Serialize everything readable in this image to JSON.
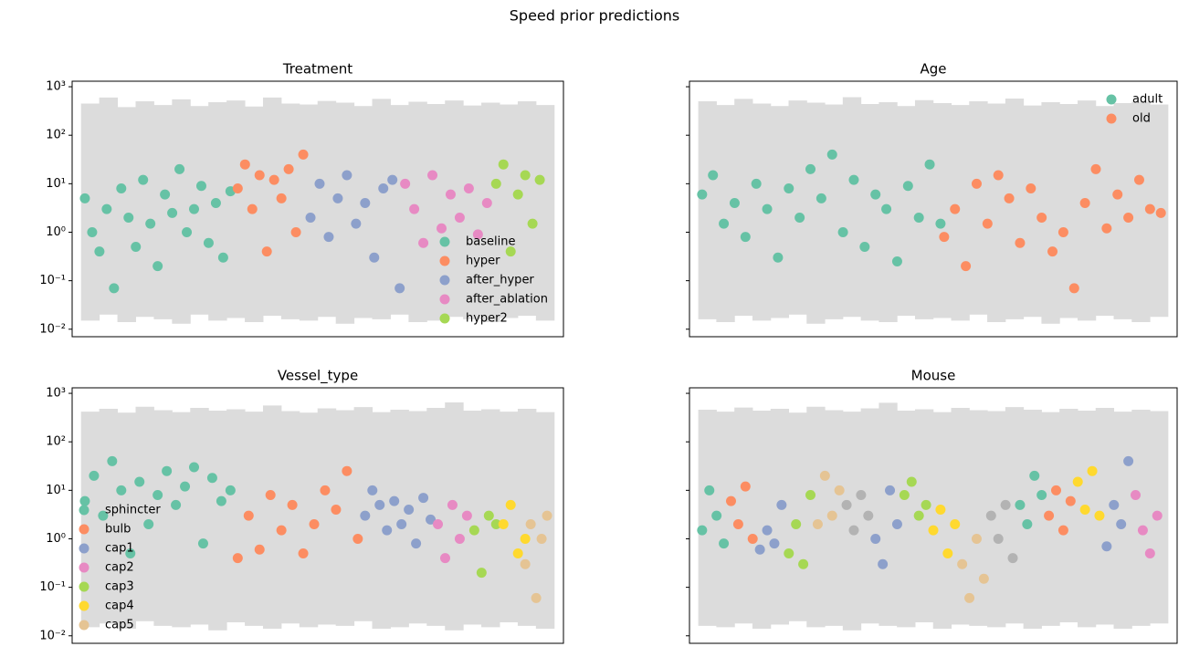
{
  "title": "Speed prior predictions",
  "chart_data": [
    {
      "type": "scatter",
      "title": "Treatment",
      "yscale": "log",
      "ylim": [
        0.007,
        1300
      ],
      "xlim": [
        -5,
        265
      ],
      "yticks": [
        {
          "value": 0.01,
          "label": "10⁻²"
        },
        {
          "value": 0.1,
          "label": "10⁻¹"
        },
        {
          "value": 1,
          "label": "10⁰"
        },
        {
          "value": 10,
          "label": "10¹"
        },
        {
          "value": 100,
          "label": "10²"
        },
        {
          "value": 1000,
          "label": "10³"
        }
      ],
      "show_ytick_labels": true,
      "legend": "lower right",
      "band": {
        "color": "#dcdcdc",
        "x": [
          0,
          10,
          20,
          30,
          40,
          50,
          60,
          70,
          80,
          90,
          100,
          110,
          120,
          130,
          140,
          150,
          160,
          170,
          180,
          190,
          200,
          210,
          220,
          230,
          240,
          250
        ],
        "lower": [
          0.015,
          0.02,
          0.014,
          0.018,
          0.016,
          0.013,
          0.02,
          0.015,
          0.017,
          0.014,
          0.019,
          0.016,
          0.015,
          0.018,
          0.013,
          0.017,
          0.016,
          0.02,
          0.014,
          0.015,
          0.018,
          0.016,
          0.014,
          0.017,
          0.019,
          0.015
        ],
        "upper": [
          450,
          600,
          380,
          500,
          420,
          550,
          400,
          480,
          520,
          390,
          600,
          450,
          430,
          510,
          470,
          400,
          560,
          420,
          490,
          440,
          520,
          410,
          470,
          430,
          500,
          420
        ]
      },
      "series": [
        {
          "name": "baseline",
          "color": "#66c2a5",
          "x": [
            2,
            6,
            10,
            14,
            18,
            22,
            26,
            30,
            34,
            38,
            42,
            46,
            50,
            54,
            58,
            62,
            66,
            70,
            74,
            78,
            82
          ],
          "values": [
            5,
            1,
            0.4,
            3,
            0.07,
            8,
            2,
            0.5,
            12,
            1.5,
            0.2,
            6,
            2.5,
            20,
            1,
            3,
            9,
            0.6,
            4,
            0.3,
            7
          ]
        },
        {
          "name": "hyper",
          "color": "#fc8d62",
          "x": [
            86,
            90,
            94,
            98,
            102,
            106,
            110,
            114,
            118,
            122
          ],
          "values": [
            8,
            25,
            3,
            15,
            0.4,
            12,
            5,
            20,
            1,
            40
          ]
        },
        {
          "name": "after_hyper",
          "color": "#8da0cb",
          "x": [
            126,
            131,
            136,
            141,
            146,
            151,
            156,
            161,
            166,
            171,
            175
          ],
          "values": [
            2,
            10,
            0.8,
            5,
            15,
            1.5,
            4,
            0.3,
            8,
            12,
            0.07
          ]
        },
        {
          "name": "after_ablation",
          "color": "#e78ac3",
          "x": [
            178,
            183,
            188,
            193,
            198,
            203,
            208,
            213,
            218,
            223
          ],
          "values": [
            10,
            3,
            0.6,
            15,
            1.2,
            6,
            2,
            8,
            0.9,
            4
          ]
        },
        {
          "name": "hyper2",
          "color": "#a6d854",
          "x": [
            228,
            232,
            236,
            240,
            244,
            248,
            252
          ],
          "values": [
            10,
            25,
            0.4,
            6,
            15,
            1.5,
            12
          ]
        }
      ]
    },
    {
      "type": "scatter",
      "title": "Age",
      "yscale": "log",
      "ylim": [
        0.007,
        1300
      ],
      "xlim": [
        -5,
        265
      ],
      "yticks": [
        0.01,
        0.1,
        1,
        10,
        100,
        1000
      ],
      "show_ytick_labels": false,
      "legend": "upper right",
      "band": {
        "color": "#dcdcdc",
        "x": [
          0,
          10,
          20,
          30,
          40,
          50,
          60,
          70,
          80,
          90,
          100,
          110,
          120,
          130,
          140,
          150,
          160,
          170,
          180,
          190,
          200,
          210,
          220,
          230,
          240,
          250
        ],
        "lower": [
          0.016,
          0.014,
          0.019,
          0.015,
          0.017,
          0.02,
          0.013,
          0.016,
          0.018,
          0.015,
          0.014,
          0.019,
          0.016,
          0.017,
          0.015,
          0.02,
          0.014,
          0.016,
          0.018,
          0.013,
          0.017,
          0.015,
          0.019,
          0.016,
          0.014,
          0.018
        ],
        "upper": [
          500,
          420,
          560,
          450,
          400,
          520,
          470,
          430,
          610,
          440,
          480,
          400,
          530,
          460,
          420,
          500,
          450,
          570,
          410,
          480,
          440,
          520,
          400,
          460,
          490,
          430
        ]
      },
      "series": [
        {
          "name": "adult",
          "color": "#66c2a5",
          "x": [
            2,
            8,
            14,
            20,
            26,
            32,
            38,
            44,
            50,
            56,
            62,
            68,
            74,
            80,
            86,
            92,
            98,
            104,
            110,
            116,
            122,
            128,
            134
          ],
          "values": [
            6,
            15,
            1.5,
            4,
            0.8,
            10,
            3,
            0.3,
            8,
            2,
            20,
            5,
            40,
            1,
            12,
            0.5,
            6,
            3,
            0.25,
            9,
            2,
            25,
            1.5
          ]
        },
        {
          "name": "old",
          "color": "#fc8d62",
          "x": [
            136,
            142,
            148,
            154,
            160,
            166,
            172,
            178,
            184,
            190,
            196,
            202,
            208,
            214,
            220,
            226,
            232,
            238,
            244,
            250,
            256
          ],
          "values": [
            0.8,
            3,
            0.2,
            10,
            1.5,
            15,
            5,
            0.6,
            8,
            2,
            0.4,
            1,
            0.07,
            4,
            20,
            1.2,
            6,
            2,
            12,
            3,
            2.5
          ]
        }
      ]
    },
    {
      "type": "scatter",
      "title": "Vessel_type",
      "yscale": "log",
      "ylim": [
        0.007,
        1300
      ],
      "xlim": [
        -5,
        265
      ],
      "yticks": [
        {
          "value": 0.01,
          "label": "10⁻²"
        },
        {
          "value": 0.1,
          "label": "10⁻¹"
        },
        {
          "value": 1,
          "label": "10⁰"
        },
        {
          "value": 10,
          "label": "10¹"
        },
        {
          "value": 100,
          "label": "10²"
        },
        {
          "value": 1000,
          "label": "10³"
        }
      ],
      "show_ytick_labels": true,
      "legend": "lower left",
      "band": {
        "color": "#dcdcdc",
        "x": [
          0,
          10,
          20,
          30,
          40,
          50,
          60,
          70,
          80,
          90,
          100,
          110,
          120,
          130,
          140,
          150,
          160,
          170,
          180,
          190,
          200,
          210,
          220,
          230,
          240,
          250
        ],
        "lower": [
          0.015,
          0.018,
          0.014,
          0.02,
          0.016,
          0.015,
          0.017,
          0.013,
          0.019,
          0.016,
          0.014,
          0.018,
          0.015,
          0.017,
          0.016,
          0.02,
          0.014,
          0.015,
          0.018,
          0.016,
          0.013,
          0.017,
          0.015,
          0.019,
          0.016,
          0.014
        ],
        "upper": [
          420,
          480,
          400,
          530,
          450,
          410,
          500,
          440,
          470,
          420,
          560,
          430,
          400,
          490,
          450,
          520,
          410,
          460,
          430,
          500,
          650,
          440,
          470,
          420,
          480,
          410
        ]
      },
      "series": [
        {
          "name": "sphincter",
          "color": "#66c2a5",
          "x": [
            2,
            7,
            12,
            17,
            22,
            27,
            32,
            37,
            42,
            47,
            52,
            57,
            62,
            67,
            72,
            77,
            82
          ],
          "values": [
            6,
            20,
            3,
            40,
            10,
            0.5,
            15,
            2,
            8,
            25,
            5,
            12,
            30,
            0.8,
            18,
            6,
            10
          ]
        },
        {
          "name": "bulb",
          "color": "#fc8d62",
          "x": [
            86,
            92,
            98,
            104,
            110,
            116,
            122,
            128,
            134,
            140,
            146,
            152
          ],
          "values": [
            0.4,
            3,
            0.6,
            8,
            1.5,
            5,
            0.5,
            2,
            10,
            4,
            25,
            1
          ]
        },
        {
          "name": "cap1",
          "color": "#8da0cb",
          "x": [
            156,
            160,
            164,
            168,
            172,
            176,
            180,
            184,
            188,
            192
          ],
          "values": [
            3,
            10,
            5,
            1.5,
            6,
            2,
            4,
            0.8,
            7,
            2.5
          ]
        },
        {
          "name": "cap2",
          "color": "#e78ac3",
          "x": [
            196,
            200,
            204,
            208,
            212
          ],
          "values": [
            2,
            0.4,
            5,
            1,
            3
          ]
        },
        {
          "name": "cap3",
          "color": "#a6d854",
          "x": [
            216,
            220,
            224,
            228
          ],
          "values": [
            1.5,
            0.2,
            3,
            2
          ]
        },
        {
          "name": "cap4",
          "color": "#ffd92f",
          "x": [
            232,
            236,
            240,
            244
          ],
          "values": [
            2,
            5,
            0.5,
            1
          ]
        },
        {
          "name": "cap5",
          "color": "#e5c494",
          "x": [
            244,
            247,
            250,
            253,
            256
          ],
          "values": [
            0.3,
            2,
            0.06,
            1,
            3
          ]
        }
      ]
    },
    {
      "type": "scatter",
      "title": "Mouse",
      "yscale": "log",
      "ylim": [
        0.007,
        1300
      ],
      "xlim": [
        -5,
        265
      ],
      "yticks": [
        0.01,
        0.1,
        1,
        10,
        100,
        1000
      ],
      "show_ytick_labels": false,
      "band": {
        "color": "#dcdcdc",
        "x": [
          0,
          10,
          20,
          30,
          40,
          50,
          60,
          70,
          80,
          90,
          100,
          110,
          120,
          130,
          140,
          150,
          160,
          170,
          180,
          190,
          200,
          210,
          220,
          230,
          240,
          250
        ],
        "lower": [
          0.016,
          0.015,
          0.018,
          0.014,
          0.017,
          0.02,
          0.015,
          0.016,
          0.013,
          0.018,
          0.016,
          0.015,
          0.019,
          0.014,
          0.017,
          0.016,
          0.015,
          0.018,
          0.014,
          0.016,
          0.019,
          0.015,
          0.017,
          0.014,
          0.016,
          0.018
        ],
        "upper": [
          460,
          420,
          510,
          440,
          480,
          400,
          530,
          450,
          420,
          490,
          640,
          440,
          470,
          410,
          500,
          450,
          430,
          520,
          460,
          410,
          480,
          440,
          500,
          420,
          460,
          430
        ]
      },
      "series": [
        {
          "color": "#66c2a5",
          "x": [
            2,
            6,
            10,
            14
          ],
          "values": [
            1.5,
            10,
            3,
            0.8
          ]
        },
        {
          "color": "#fc8d62",
          "x": [
            18,
            22,
            26,
            30
          ],
          "values": [
            6,
            2,
            12,
            1
          ]
        },
        {
          "color": "#8da0cb",
          "x": [
            34,
            38,
            42,
            46
          ],
          "values": [
            0.6,
            1.5,
            0.8,
            5
          ]
        },
        {
          "color": "#a6d854",
          "x": [
            50,
            54,
            58,
            62
          ],
          "values": [
            0.5,
            2,
            0.3,
            8
          ]
        },
        {
          "color": "#e5c494",
          "x": [
            66,
            70,
            74,
            78
          ],
          "values": [
            2,
            20,
            3,
            10
          ]
        },
        {
          "color": "#b3b3b3",
          "x": [
            82,
            86,
            90,
            94
          ],
          "values": [
            5,
            1.5,
            8,
            3
          ]
        },
        {
          "color": "#8da0cb",
          "x": [
            98,
            102,
            106,
            110
          ],
          "values": [
            1,
            0.3,
            10,
            2
          ]
        },
        {
          "color": "#a6d854",
          "x": [
            114,
            118,
            122,
            126
          ],
          "values": [
            8,
            15,
            3,
            5
          ]
        },
        {
          "color": "#ffd92f",
          "x": [
            130,
            134,
            138,
            142
          ],
          "values": [
            1.5,
            4,
            0.5,
            2
          ]
        },
        {
          "color": "#e5c494",
          "x": [
            146,
            150,
            154,
            158
          ],
          "values": [
            0.3,
            0.06,
            1,
            0.15
          ]
        },
        {
          "color": "#b3b3b3",
          "x": [
            162,
            166,
            170,
            174
          ],
          "values": [
            3,
            1,
            5,
            0.4
          ]
        },
        {
          "color": "#66c2a5",
          "x": [
            178,
            182,
            186,
            190
          ],
          "values": [
            5,
            2,
            20,
            8
          ]
        },
        {
          "color": "#fc8d62",
          "x": [
            194,
            198,
            202,
            206
          ],
          "values": [
            3,
            10,
            1.5,
            6
          ]
        },
        {
          "color": "#ffd92f",
          "x": [
            210,
            214,
            218,
            222
          ],
          "values": [
            15,
            4,
            25,
            3
          ]
        },
        {
          "color": "#8da0cb",
          "x": [
            226,
            230,
            234,
            238
          ],
          "values": [
            0.7,
            5,
            2,
            40
          ]
        },
        {
          "color": "#e78ac3",
          "x": [
            242,
            246,
            250,
            254
          ],
          "values": [
            8,
            1.5,
            0.5,
            3
          ]
        }
      ]
    }
  ]
}
